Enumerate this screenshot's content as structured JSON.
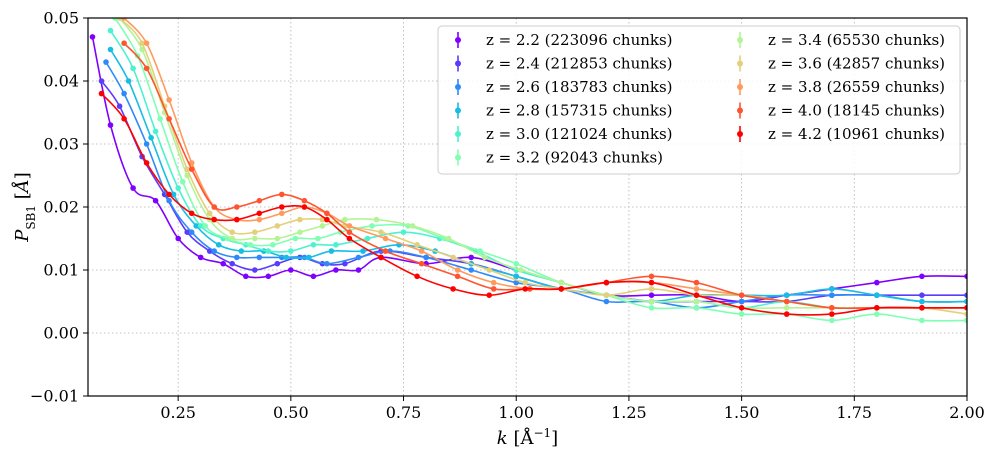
{
  "chart_data": {
    "type": "scatter",
    "title": "",
    "xlabel_var": "k",
    "xlabel_unit": " [Å",
    "xlabel_exp": "−1",
    "xlabel_close": "]",
    "ylabel_var": "P",
    "ylabel_sub": "SB1",
    "ylabel_unit": " [",
    "ylabel_unit_var": "Å",
    "ylabel_close": "]",
    "xlim": [
      0.05,
      2.0
    ],
    "ylim": [
      -0.01,
      0.05
    ],
    "xticks": [
      0.25,
      0.5,
      0.75,
      1.0,
      1.25,
      1.5,
      1.75,
      2.0
    ],
    "xtick_labels": [
      "0.25",
      "0.50",
      "0.75",
      "1.00",
      "1.25",
      "1.50",
      "1.75",
      "2.00"
    ],
    "yticks": [
      -0.01,
      0.0,
      0.01,
      0.02,
      0.03,
      0.04,
      0.05
    ],
    "ytick_labels": [
      "−0.01",
      "0.00",
      "0.01",
      "0.02",
      "0.03",
      "0.04",
      "0.05"
    ],
    "grid": true,
    "legend_location": "upper-right",
    "series": [
      {
        "name": "z = 2.2 (223096 chunks)",
        "color": "#7f00ff",
        "x": [
          0.06,
          0.1,
          0.15,
          0.2,
          0.25,
          0.3,
          0.35,
          0.4,
          0.45,
          0.5,
          0.55,
          0.6,
          0.65,
          0.7,
          0.8,
          0.9,
          1.0,
          1.1,
          1.2,
          1.3,
          1.4,
          1.5,
          1.6,
          1.7,
          1.8,
          1.9,
          2.0
        ],
        "y": [
          0.047,
          0.033,
          0.023,
          0.021,
          0.015,
          0.012,
          0.011,
          0.009,
          0.009,
          0.01,
          0.009,
          0.01,
          0.01,
          0.012,
          0.011,
          0.012,
          0.01,
          0.008,
          0.006,
          0.006,
          0.006,
          0.005,
          0.006,
          0.007,
          0.008,
          0.009,
          0.009
        ]
      },
      {
        "name": "z = 2.4 (212853 chunks)",
        "color": "#5a3cfc",
        "x": [
          0.08,
          0.12,
          0.17,
          0.22,
          0.27,
          0.32,
          0.37,
          0.42,
          0.47,
          0.52,
          0.57,
          0.62,
          0.7,
          0.8,
          0.9,
          1.0,
          1.1,
          1.2,
          1.3,
          1.4,
          1.5,
          1.6,
          1.7,
          1.8,
          1.9,
          2.0
        ],
        "y": [
          0.04,
          0.036,
          0.028,
          0.022,
          0.016,
          0.013,
          0.011,
          0.01,
          0.011,
          0.012,
          0.011,
          0.011,
          0.013,
          0.012,
          0.011,
          0.009,
          0.007,
          0.006,
          0.005,
          0.005,
          0.005,
          0.005,
          0.006,
          0.006,
          0.006,
          0.006
        ]
      },
      {
        "name": "z = 2.6 (183783 chunks)",
        "color": "#2e8af8",
        "x": [
          0.09,
          0.13,
          0.18,
          0.23,
          0.28,
          0.33,
          0.38,
          0.43,
          0.48,
          0.53,
          0.58,
          0.65,
          0.72,
          0.8,
          0.9,
          1.0,
          1.1,
          1.2,
          1.3,
          1.4,
          1.5,
          1.6,
          1.7,
          1.8,
          1.9,
          2.0
        ],
        "y": [
          0.043,
          0.038,
          0.03,
          0.021,
          0.016,
          0.013,
          0.012,
          0.012,
          0.012,
          0.012,
          0.011,
          0.012,
          0.013,
          0.012,
          0.01,
          0.008,
          0.007,
          0.005,
          0.005,
          0.004,
          0.005,
          0.006,
          0.006,
          0.006,
          0.005,
          0.005
        ]
      },
      {
        "name": "z = 2.8 (157315 chunks)",
        "color": "#18bde4",
        "x": [
          0.1,
          0.14,
          0.19,
          0.24,
          0.29,
          0.34,
          0.39,
          0.44,
          0.49,
          0.54,
          0.59,
          0.66,
          0.74,
          0.82,
          0.9,
          1.0,
          1.1,
          1.2,
          1.3,
          1.4,
          1.5,
          1.6,
          1.7,
          1.8,
          1.9,
          2.0
        ],
        "y": [
          0.045,
          0.04,
          0.031,
          0.022,
          0.017,
          0.014,
          0.013,
          0.013,
          0.012,
          0.012,
          0.013,
          0.013,
          0.014,
          0.013,
          0.011,
          0.009,
          0.007,
          0.006,
          0.005,
          0.006,
          0.006,
          0.006,
          0.007,
          0.006,
          0.005,
          0.005
        ]
      },
      {
        "name": "z = 3.0 (121024 chunks)",
        "color": "#4cf2ce",
        "x": [
          0.1,
          0.15,
          0.2,
          0.25,
          0.3,
          0.35,
          0.4,
          0.45,
          0.5,
          0.55,
          0.6,
          0.67,
          0.75,
          0.83,
          0.91,
          1.0,
          1.1,
          1.2,
          1.3,
          1.4,
          1.5,
          1.6,
          1.7,
          1.8,
          1.9,
          2.0
        ],
        "y": [
          0.048,
          0.042,
          0.032,
          0.023,
          0.017,
          0.015,
          0.014,
          0.013,
          0.013,
          0.014,
          0.014,
          0.015,
          0.016,
          0.015,
          0.013,
          0.01,
          0.008,
          0.006,
          0.005,
          0.005,
          0.004,
          0.005,
          0.004,
          0.004,
          0.004,
          0.004
        ]
      },
      {
        "name": "z = 3.2 (92043 chunks)",
        "color": "#80ffb4",
        "x": [
          0.11,
          0.16,
          0.21,
          0.26,
          0.31,
          0.36,
          0.41,
          0.46,
          0.51,
          0.56,
          0.61,
          0.68,
          0.76,
          0.84,
          0.92,
          1.0,
          1.1,
          1.2,
          1.3,
          1.4,
          1.5,
          1.6,
          1.7,
          1.8,
          1.9,
          2.0
        ],
        "y": [
          0.05,
          0.044,
          0.034,
          0.024,
          0.017,
          0.015,
          0.014,
          0.014,
          0.015,
          0.015,
          0.016,
          0.017,
          0.017,
          0.015,
          0.013,
          0.011,
          0.008,
          0.006,
          0.004,
          0.004,
          0.003,
          0.003,
          0.002,
          0.003,
          0.002,
          0.002
        ]
      },
      {
        "name": "z = 3.4 (65530 chunks)",
        "color": "#b4f496",
        "x": [
          0.12,
          0.17,
          0.22,
          0.27,
          0.32,
          0.37,
          0.42,
          0.47,
          0.52,
          0.57,
          0.62,
          0.69,
          0.77,
          0.85,
          0.93,
          1.01,
          1.1,
          1.2,
          1.3,
          1.4,
          1.5,
          1.6,
          1.7,
          1.8,
          1.9,
          2.0
        ],
        "y": [
          0.05,
          0.045,
          0.035,
          0.025,
          0.018,
          0.015,
          0.015,
          0.015,
          0.016,
          0.017,
          0.018,
          0.018,
          0.017,
          0.015,
          0.012,
          0.01,
          0.008,
          0.006,
          0.005,
          0.005,
          0.004,
          0.004,
          0.004,
          0.004,
          0.004,
          0.004
        ]
      },
      {
        "name": "z = 3.6 (42857 chunks)",
        "color": "#e2d07c",
        "x": [
          0.12,
          0.17,
          0.22,
          0.27,
          0.32,
          0.37,
          0.42,
          0.47,
          0.52,
          0.57,
          0.62,
          0.7,
          0.78,
          0.86,
          0.94,
          1.02,
          1.1,
          1.2,
          1.3,
          1.4,
          1.5,
          1.6,
          1.7,
          1.8,
          1.9,
          2.0
        ],
        "y": [
          0.05,
          0.046,
          0.036,
          0.026,
          0.019,
          0.016,
          0.016,
          0.017,
          0.018,
          0.018,
          0.017,
          0.016,
          0.014,
          0.012,
          0.01,
          0.008,
          0.007,
          0.006,
          0.007,
          0.006,
          0.006,
          0.005,
          0.004,
          0.004,
          0.004,
          0.003
        ]
      },
      {
        "name": "z = 3.8 (26559 chunks)",
        "color": "#ff9a5e",
        "x": [
          0.13,
          0.18,
          0.23,
          0.28,
          0.33,
          0.38,
          0.43,
          0.48,
          0.53,
          0.58,
          0.63,
          0.71,
          0.79,
          0.87,
          0.95,
          1.03,
          1.1,
          1.2,
          1.3,
          1.4,
          1.5,
          1.6,
          1.7,
          1.8,
          1.9,
          2.0
        ],
        "y": [
          0.05,
          0.046,
          0.037,
          0.027,
          0.02,
          0.018,
          0.018,
          0.019,
          0.02,
          0.019,
          0.017,
          0.015,
          0.013,
          0.01,
          0.008,
          0.007,
          0.007,
          0.008,
          0.008,
          0.007,
          0.006,
          0.005,
          0.004,
          0.004,
          0.004,
          0.004
        ]
      },
      {
        "name": "z = 4.0 (18145 chunks)",
        "color": "#ff5430",
        "x": [
          0.13,
          0.18,
          0.23,
          0.28,
          0.33,
          0.38,
          0.43,
          0.48,
          0.53,
          0.58,
          0.63,
          0.71,
          0.79,
          0.87,
          0.95,
          1.03,
          1.1,
          1.2,
          1.3,
          1.4,
          1.5,
          1.6,
          1.7,
          1.8,
          1.9,
          2.0
        ],
        "y": [
          0.046,
          0.042,
          0.034,
          0.026,
          0.02,
          0.02,
          0.021,
          0.022,
          0.021,
          0.019,
          0.016,
          0.013,
          0.011,
          0.009,
          0.007,
          0.007,
          0.007,
          0.008,
          0.009,
          0.008,
          0.006,
          0.005,
          0.004,
          0.004,
          0.004,
          0.004
        ]
      },
      {
        "name": "z = 4.2 (10961 chunks)",
        "color": "#ff0000",
        "x": [
          0.08,
          0.13,
          0.18,
          0.23,
          0.28,
          0.33,
          0.38,
          0.43,
          0.48,
          0.53,
          0.58,
          0.63,
          0.7,
          0.78,
          0.86,
          0.94,
          1.02,
          1.1,
          1.2,
          1.3,
          1.4,
          1.5,
          1.6,
          1.7,
          1.8,
          1.9,
          2.0
        ],
        "y": [
          0.038,
          0.034,
          0.027,
          0.022,
          0.019,
          0.018,
          0.018,
          0.019,
          0.02,
          0.02,
          0.018,
          0.015,
          0.012,
          0.009,
          0.007,
          0.006,
          0.007,
          0.007,
          0.008,
          0.008,
          0.006,
          0.004,
          0.003,
          0.003,
          0.004,
          0.004,
          0.004
        ]
      }
    ]
  }
}
